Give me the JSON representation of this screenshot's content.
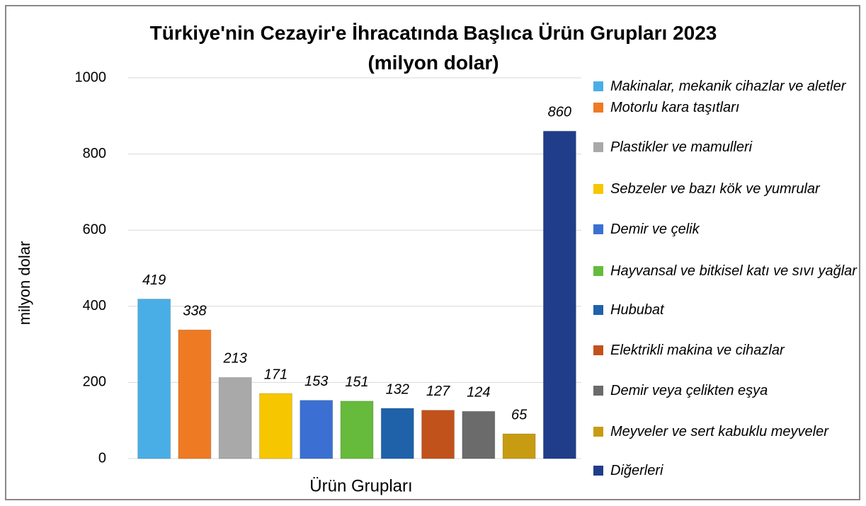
{
  "chart_data": {
    "type": "bar",
    "title": "Türkiye'nin Cezayir'e İhracatında Başlıca Ürün Grupları 2023 (milyon dolar)",
    "y_label": "milyon dolar",
    "x_label": "Ürün Grupları",
    "ylim": [
      0,
      1000
    ],
    "yticks": [
      0,
      200,
      400,
      600,
      800,
      1000
    ],
    "grid": true,
    "legend": "right",
    "series": [
      {
        "name": "Makinalar, mekanik cihazlar ve aletler",
        "color": "#4aaee6",
        "values": [
          419
        ]
      },
      {
        "name": "Motorlu kara taşıtları",
        "color": "#ef7a24",
        "values": [
          338
        ]
      },
      {
        "name": "Plastikler ve mamulleri",
        "color": "#a9a9a9",
        "values": [
          213
        ]
      },
      {
        "name": "Sebzeler ve bazı kök ve yumrular",
        "color": "#f6c600",
        "values": [
          171
        ]
      },
      {
        "name": "Demir ve çelik",
        "color": "#3b70d2",
        "values": [
          153
        ]
      },
      {
        "name": "Hayvansal ve bitkisel katı ve sıvı yağlar",
        "color": "#66bb3c",
        "values": [
          151
        ]
      },
      {
        "name": "Hububat",
        "color": "#1f62aa",
        "values": [
          132
        ]
      },
      {
        "name": "Elektrikli makina ve cihazlar",
        "color": "#c2521c",
        "values": [
          127
        ]
      },
      {
        "name": "Demir veya çelikten eşya",
        "color": "#6b6b6b",
        "values": [
          124
        ]
      },
      {
        "name": "Meyveler ve sert kabuklu meyveler",
        "color": "#c89c12",
        "values": [
          65
        ]
      },
      {
        "name": "Diğerleri",
        "color": "#203d8a",
        "values": [
          860
        ]
      }
    ]
  }
}
